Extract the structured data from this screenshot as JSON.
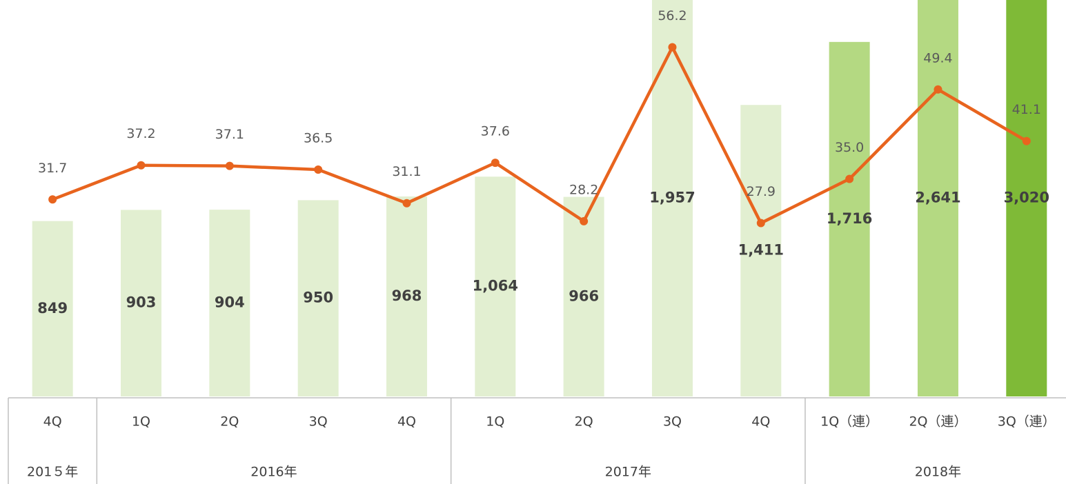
{
  "chart_data": {
    "type": "combo",
    "categories": [
      "4Q",
      "1Q",
      "2Q",
      "3Q",
      "4Q",
      "1Q",
      "2Q",
      "3Q",
      "4Q",
      "1Q（連）",
      "2Q（連）",
      "3Q（連）"
    ],
    "groups": [
      {
        "label": "201５年",
        "span": 1
      },
      {
        "label": "2016年",
        "span": 4
      },
      {
        "label": "2017年",
        "span": 4
      },
      {
        "label": "2018年",
        "span": 3
      }
    ],
    "series": [
      {
        "type": "bar",
        "values": [
          849,
          903,
          904,
          950,
          968,
          1064,
          966,
          1957,
          1411,
          1716,
          2641,
          3020
        ],
        "value_labels": [
          "849",
          "903",
          "904",
          "950",
          "968",
          "1,064",
          "966",
          "1,957",
          "1,411",
          "1,716",
          "2,641",
          "3,020"
        ],
        "colors": [
          "#e2efd1",
          "#e2efd1",
          "#e2efd1",
          "#e2efd1",
          "#e2efd1",
          "#e2efd1",
          "#e2efd1",
          "#e2efd1",
          "#e2efd1",
          "#b4d982",
          "#b4d982",
          "#7fba37"
        ]
      },
      {
        "type": "line",
        "axis": "y2",
        "color": "#e8641e",
        "values": [
          31.7,
          37.2,
          37.1,
          36.5,
          31.1,
          37.6,
          28.2,
          56.2,
          27.9,
          35.0,
          49.4,
          41.1
        ],
        "value_labels": [
          "31.7",
          "37.2",
          "37.1",
          "36.5",
          "31.1",
          "37.6",
          "28.2",
          "56.2",
          "27.9",
          "35.0",
          "49.4",
          "41.1"
        ]
      }
    ],
    "ylim": [
      0,
      1919
    ],
    "y2lim": [
      0,
      63.8
    ]
  }
}
